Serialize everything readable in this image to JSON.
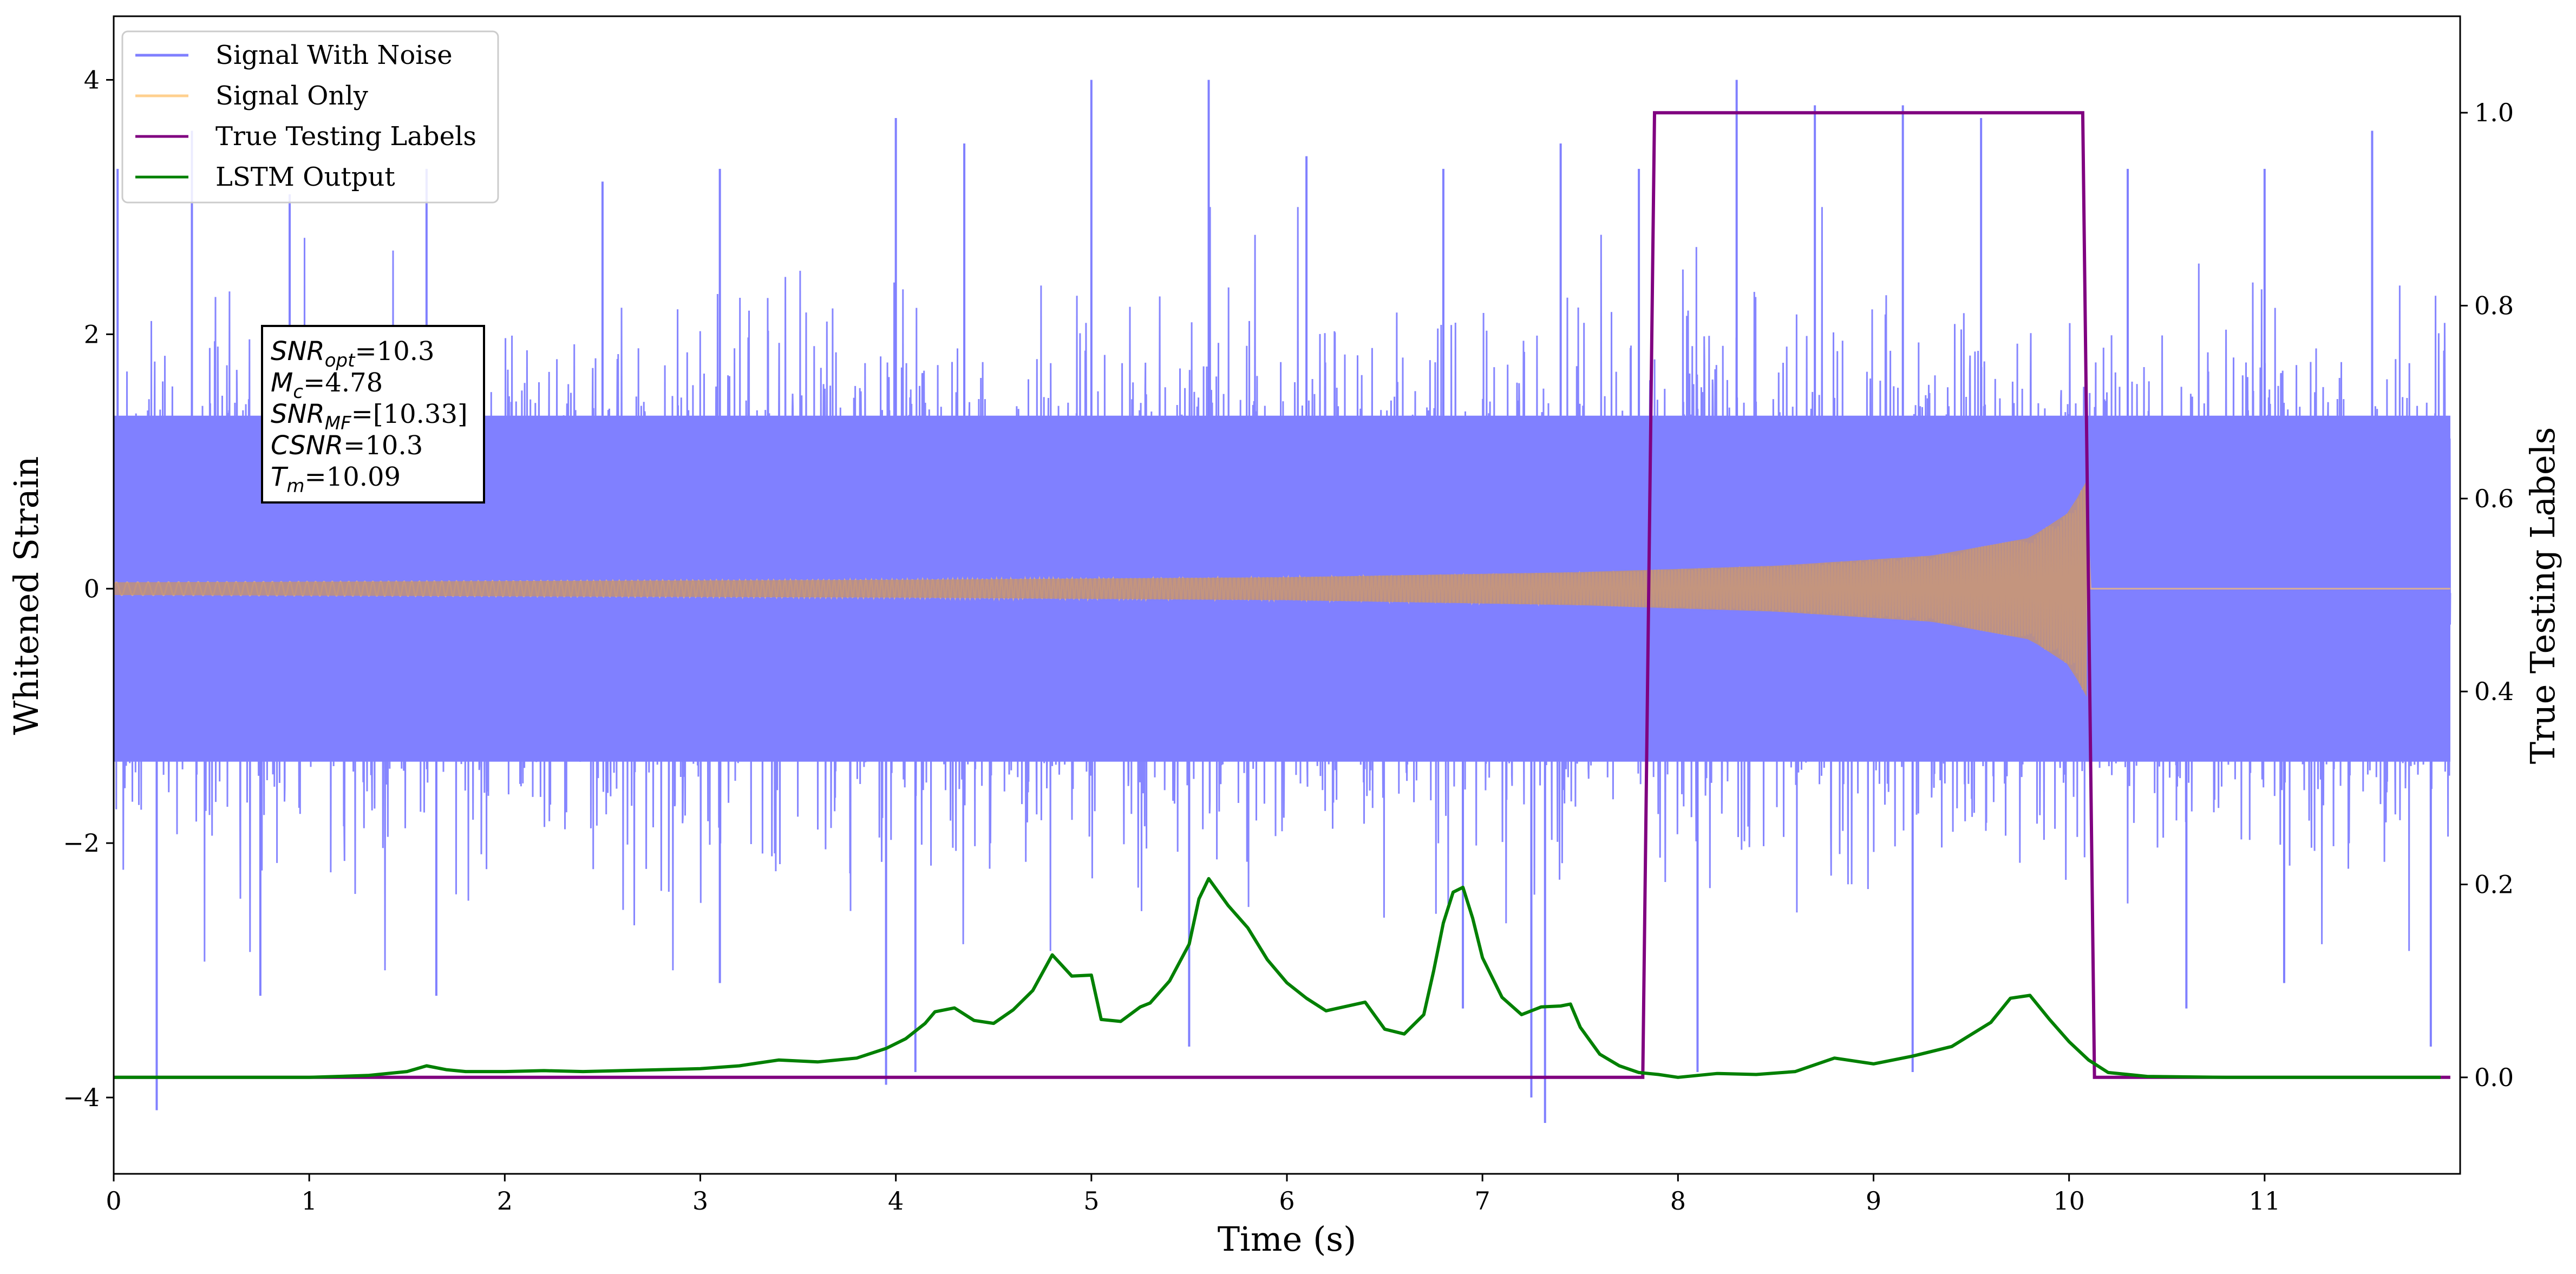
{
  "chart_data": {
    "type": "line",
    "xlabel": "Time (s)",
    "ylabel_left": "Whitened Strain",
    "ylabel_right": "True Testing Labels",
    "xlim": [
      0,
      12
    ],
    "ylim_left": [
      -4.6,
      4.5
    ],
    "ylim_right": [
      -0.1,
      1.1
    ],
    "x_ticks": [
      "0",
      "1",
      "2",
      "3",
      "4",
      "5",
      "6",
      "7",
      "8",
      "9",
      "10",
      "11"
    ],
    "y_left_ticks": [
      "−4",
      "−2",
      "0",
      "2",
      "4"
    ],
    "y_right_ticks": [
      "0.0",
      "0.2",
      "0.4",
      "0.6",
      "0.8",
      "1.0"
    ],
    "grid": false,
    "legend_placement": "upper left",
    "colors": {
      "noise": "#8080ff",
      "signal": "#ffc06a",
      "labels": "#800080",
      "lstm": "#008000"
    },
    "series": [
      {
        "name": "Signal With Noise",
        "axis": "left",
        "description_values": {
          "envelope_typical": [
            -1.6,
            1.6
          ],
          "spike_max": [
            [
              0.02,
              3.3
            ],
            [
              0.4,
              3.6
            ],
            [
              0.9,
              3.1
            ],
            [
              1.6,
              3.3
            ],
            [
              2.5,
              3.2
            ],
            [
              3.1,
              3.3
            ],
            [
              4.0,
              3.7
            ],
            [
              4.35,
              3.5
            ],
            [
              5.0,
              4.0
            ],
            [
              5.6,
              4.0
            ],
            [
              6.1,
              3.4
            ],
            [
              6.8,
              3.3
            ],
            [
              7.4,
              3.5
            ],
            [
              7.8,
              3.3
            ],
            [
              8.3,
              4.0
            ],
            [
              8.7,
              3.8
            ],
            [
              9.15,
              3.8
            ],
            [
              9.55,
              3.7
            ],
            [
              10.3,
              3.3
            ],
            [
              11.0,
              3.3
            ],
            [
              11.55,
              3.6
            ]
          ],
          "spike_min": [
            [
              0.22,
              -4.1
            ],
            [
              0.75,
              -3.2
            ],
            [
              1.65,
              -3.2
            ],
            [
              3.1,
              -3.1
            ],
            [
              3.95,
              -3.9
            ],
            [
              4.1,
              -3.8
            ],
            [
              5.5,
              -3.6
            ],
            [
              6.9,
              -3.3
            ],
            [
              7.25,
              -4.0
            ],
            [
              7.32,
              -4.2
            ],
            [
              8.1,
              -3.8
            ],
            [
              9.2,
              -3.8
            ],
            [
              10.6,
              -3.3
            ],
            [
              11.1,
              -3.1
            ],
            [
              11.85,
              -3.6
            ]
          ]
        }
      },
      {
        "name": "Signal Only",
        "axis": "left",
        "description_values": {
          "envelope": [
            [
              0.0,
              0.05
            ],
            [
              2.0,
              0.06
            ],
            [
              4.0,
              0.07
            ],
            [
              6.0,
              0.09
            ],
            [
              7.5,
              0.13
            ],
            [
              8.5,
              0.18
            ],
            [
              9.3,
              0.26
            ],
            [
              9.8,
              0.4
            ],
            [
              10.0,
              0.6
            ],
            [
              10.09,
              0.85
            ]
          ],
          "ends_at": 10.09
        }
      },
      {
        "name": "True Testing Labels",
        "axis": "right",
        "x": [
          0.0,
          7.82,
          7.88,
          10.07,
          10.13,
          11.95
        ],
        "y": [
          0.0,
          0.0,
          1.0,
          1.0,
          0.0,
          0.0
        ]
      },
      {
        "name": "LSTM Output",
        "axis": "right",
        "x": [
          0.0,
          0.5,
          1.0,
          1.3,
          1.5,
          1.6,
          1.7,
          1.8,
          2.0,
          2.2,
          2.4,
          2.6,
          2.8,
          3.0,
          3.2,
          3.3,
          3.4,
          3.5,
          3.6,
          3.8,
          3.95,
          4.05,
          4.15,
          4.2,
          4.3,
          4.4,
          4.5,
          4.6,
          4.7,
          4.8,
          4.9,
          5.0,
          5.05,
          5.15,
          5.25,
          5.3,
          5.4,
          5.5,
          5.55,
          5.6,
          5.7,
          5.8,
          5.9,
          6.0,
          6.1,
          6.2,
          6.4,
          6.5,
          6.6,
          6.7,
          6.75,
          6.8,
          6.85,
          6.9,
          6.95,
          7.0,
          7.1,
          7.2,
          7.3,
          7.4,
          7.45,
          7.5,
          7.6,
          7.7,
          7.8,
          7.9,
          8.0,
          8.2,
          8.4,
          8.6,
          8.8,
          9.0,
          9.2,
          9.4,
          9.6,
          9.7,
          9.8,
          9.9,
          10.0,
          10.1,
          10.2,
          10.4,
          10.8,
          11.2,
          11.9
        ],
        "y": [
          0.0,
          0.0,
          0.0,
          0.002,
          0.006,
          0.012,
          0.008,
          0.006,
          0.006,
          0.007,
          0.006,
          0.007,
          0.008,
          0.009,
          0.012,
          0.015,
          0.018,
          0.017,
          0.016,
          0.02,
          0.03,
          0.04,
          0.056,
          0.068,
          0.072,
          0.059,
          0.056,
          0.07,
          0.09,
          0.127,
          0.105,
          0.106,
          0.06,
          0.058,
          0.073,
          0.077,
          0.1,
          0.138,
          0.185,
          0.206,
          0.178,
          0.155,
          0.122,
          0.098,
          0.082,
          0.069,
          0.078,
          0.05,
          0.045,
          0.065,
          0.11,
          0.16,
          0.192,
          0.197,
          0.165,
          0.124,
          0.083,
          0.065,
          0.073,
          0.074,
          0.076,
          0.052,
          0.024,
          0.012,
          0.005,
          0.003,
          0.0,
          0.004,
          0.003,
          0.006,
          0.02,
          0.014,
          0.022,
          0.032,
          0.057,
          0.082,
          0.085,
          0.06,
          0.037,
          0.018,
          0.005,
          0.001,
          0.0,
          0.0,
          0.0
        ]
      }
    ],
    "legend": [
      "Signal With Noise",
      "Signal Only",
      "True Testing Labels",
      "LSTM Output"
    ],
    "annotation": {
      "lines": [
        {
          "var": "SNR",
          "sub": "opt",
          "value": "=10.3"
        },
        {
          "var": "M",
          "sub": "c",
          "value": "=4.78"
        },
        {
          "var": "SNR",
          "sub": "MF",
          "value": "=[10.33]"
        },
        {
          "var": "CSNR",
          "sub": "",
          "value": "=10.3"
        },
        {
          "var": "T",
          "sub": "m",
          "value": "=10.09"
        }
      ]
    }
  }
}
